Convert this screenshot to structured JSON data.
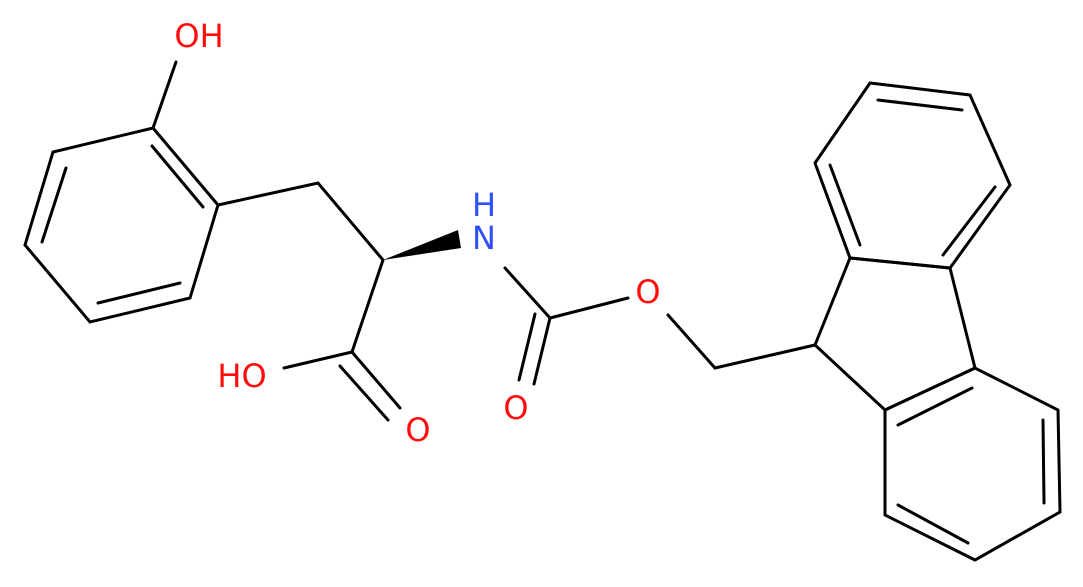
{
  "atoms": {
    "hydroxyl": "OH",
    "acid_hydroxyl": "HO",
    "acid_oxygen": "O",
    "amide_hydrogen": "H",
    "amide_nitrogen": "N",
    "carbonyl_oxygen": "O",
    "ester_oxygen": "O"
  }
}
